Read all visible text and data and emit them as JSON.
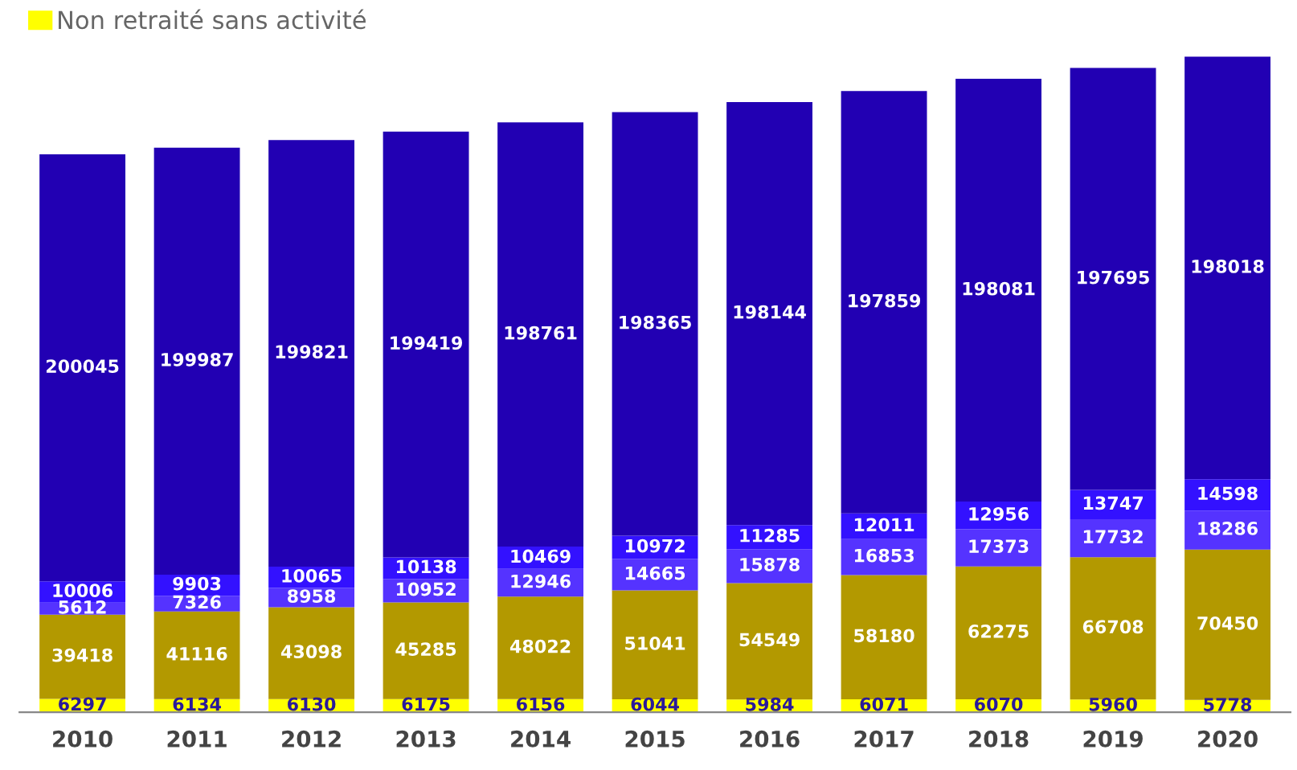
{
  "chart_data": {
    "type": "bar",
    "stacked": true,
    "data_labels": true,
    "legend": "top left",
    "grid": false,
    "categories": [
      "2010",
      "2011",
      "2012",
      "2013",
      "2014",
      "2015",
      "2016",
      "2017",
      "2018",
      "2019",
      "2020"
    ],
    "series": [
      {
        "name": "Non retraité sans activité",
        "color": "#ffff00",
        "values": [
          6297,
          6134,
          6130,
          6175,
          6156,
          6044,
          5984,
          6071,
          6070,
          5960,
          5778
        ]
      },
      {
        "color": "#b39900",
        "values": [
          39418,
          41116,
          43098,
          45285,
          48022,
          51041,
          54549,
          58180,
          62275,
          66708,
          70450
        ]
      },
      {
        "color": "#5533ff",
        "values": [
          5612,
          7326,
          8958,
          10952,
          12946,
          14665,
          15878,
          16853,
          17373,
          17732,
          18286
        ]
      },
      {
        "color": "#3311ff",
        "values": [
          10006,
          9903,
          10065,
          10138,
          10469,
          10972,
          11285,
          12011,
          12956,
          13747,
          14598
        ]
      },
      {
        "color": "#2200b3",
        "values": [
          200045,
          199987,
          199821,
          199419,
          198761,
          198365,
          198144,
          197859,
          198081,
          197695,
          198018
        ]
      }
    ]
  }
}
